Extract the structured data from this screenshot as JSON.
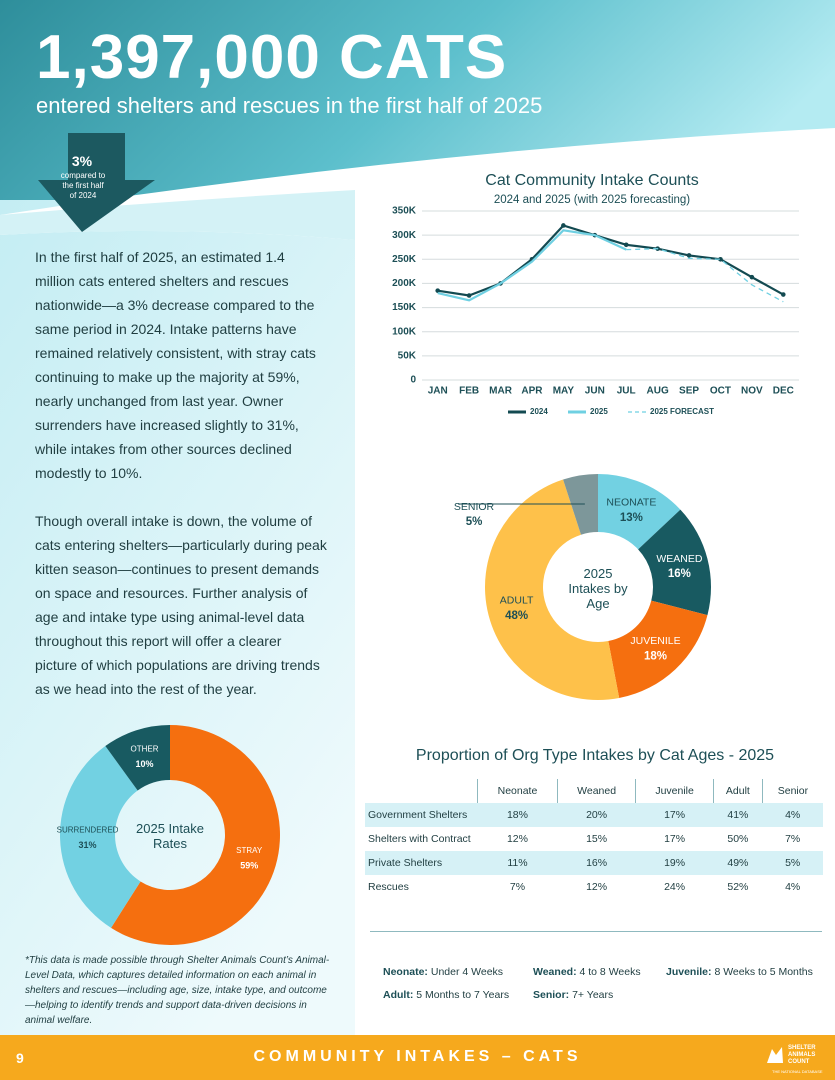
{
  "header": {
    "title": "1,397,000 CATS",
    "subtitle": "entered shelters and rescues in the first half of 2025"
  },
  "callout": {
    "value": "3%",
    "text": "compared to the first half of 2024"
  },
  "body": {
    "paragraphs": [
      "In the first half of 2025, an estimated 1.4 million cats entered shelters and rescues nationwide—a 3% decrease compared to the same period in 2024. Intake patterns have remained relatively consistent, with stray cats continuing to make up the majority at 59%, nearly unchanged from last year. Owner surrenders have increased slightly to 31%, while intakes from other sources declined modestly to 10%.",
      "Though overall intake is down, the volume of cats entering shelters—particularly during peak kitten season—continues to present demands on space and resources. Further analysis of age and intake type using animal-level data throughout this report will offer a clearer picture of which populations are driving trends as we head into the rest of the year."
    ]
  },
  "chart_data": [
    {
      "type": "line",
      "title": "Cat Community Intake Counts",
      "subtitle": "2024 and 2025 (with 2025 forecasting)",
      "categories": [
        "JAN",
        "FEB",
        "MAR",
        "APR",
        "MAY",
        "JUN",
        "JUL",
        "AUG",
        "SEP",
        "OCT",
        "NOV",
        "DEC"
      ],
      "series": [
        {
          "name": "2024",
          "color": "#134a51",
          "markers": true,
          "dash": false,
          "values": [
            185000,
            175000,
            200000,
            250000,
            320000,
            300000,
            280000,
            272000,
            258000,
            250000,
            213000,
            177000
          ]
        },
        {
          "name": "2025",
          "color": "#6fd0e2",
          "markers": false,
          "dash": false,
          "values": [
            180000,
            165000,
            200000,
            245000,
            310000,
            300000,
            270000,
            null,
            null,
            null,
            null,
            null
          ]
        },
        {
          "name": "2025 FORECAST",
          "color": "#6fd0e2",
          "markers": false,
          "dash": true,
          "values": [
            null,
            null,
            null,
            null,
            null,
            null,
            270000,
            272000,
            252000,
            250000,
            197000,
            162000
          ]
        }
      ],
      "ylim": [
        0,
        350000
      ],
      "yticks": [
        0,
        {
          "value": 50000,
          "label": "50K"
        },
        {
          "value": 100000,
          "label": "100K"
        },
        {
          "value": 150000,
          "label": "150K"
        },
        {
          "value": 200000,
          "label": "200K"
        },
        {
          "value": 250000,
          "label": "250K"
        },
        {
          "value": 300000,
          "label": "300K"
        },
        {
          "value": 350000,
          "label": "350K"
        }
      ],
      "grid": true,
      "legend": "bottom"
    },
    {
      "type": "pie",
      "center_label": "2025 Intakes by Age",
      "categories": [
        "NEONATE",
        "WEANED",
        "JUVENILE",
        "ADULT",
        "SENIOR"
      ],
      "values": [
        13,
        16,
        18,
        48,
        5
      ],
      "value_labels": [
        "13%",
        "16%",
        "18%",
        "48%",
        "5%"
      ],
      "colors": [
        "#72d1e2",
        "#185a61",
        "#f56f0f",
        "#fec14a",
        "#7d979a"
      ]
    },
    {
      "type": "pie",
      "center_label": "2025 Intake Rates",
      "categories": [
        "STRAY",
        "SURRENDERED",
        "OTHER"
      ],
      "values": [
        59,
        31,
        10
      ],
      "value_labels": [
        "59%",
        "31%",
        "10%"
      ],
      "colors": [
        "#f56f0f",
        "#72d1e2",
        "#185a61"
      ]
    }
  ],
  "table": {
    "title": "Proportion of Org Type Intakes by Cat Ages - 2025",
    "columns": [
      "Neonate",
      "Weaned",
      "Juvenile",
      "Adult",
      "Senior"
    ],
    "rows": [
      {
        "label": "Government Shelters",
        "cells": [
          "18%",
          "20%",
          "17%",
          "41%",
          "4%"
        ]
      },
      {
        "label": "Shelters with Contract",
        "cells": [
          "12%",
          "15%",
          "17%",
          "50%",
          "7%"
        ]
      },
      {
        "label": "Private Shelters",
        "cells": [
          "11%",
          "16%",
          "19%",
          "49%",
          "5%"
        ]
      },
      {
        "label": "Rescues",
        "cells": [
          "7%",
          "12%",
          "24%",
          "52%",
          "4%"
        ]
      }
    ]
  },
  "definitions": [
    {
      "term": "Neonate:",
      "text": "Under 4 Weeks"
    },
    {
      "term": "Weaned:",
      "text": "4 to 8 Weeks"
    },
    {
      "term": "Juvenile:",
      "text": "8 Weeks to 5 Months"
    },
    {
      "term": "Adult:",
      "text": "5 Months to 7 Years"
    },
    {
      "term": "Senior:",
      "text": "7+ Years"
    }
  ],
  "footnote": "*This data is made possible through Shelter Animals Count’s Animal-Level Data, which captures detailed information on each animal in shelters and rescues—including age, size, intake type, and outcome—helping to identify trends and support data-driven decisions in animal welfare.",
  "footer": {
    "page": "9",
    "title": "COMMUNITY INTAKES – CATS",
    "logo": "SHELTER ANIMALS COUNT",
    "tagline": "THE NATIONAL DATABASE"
  }
}
